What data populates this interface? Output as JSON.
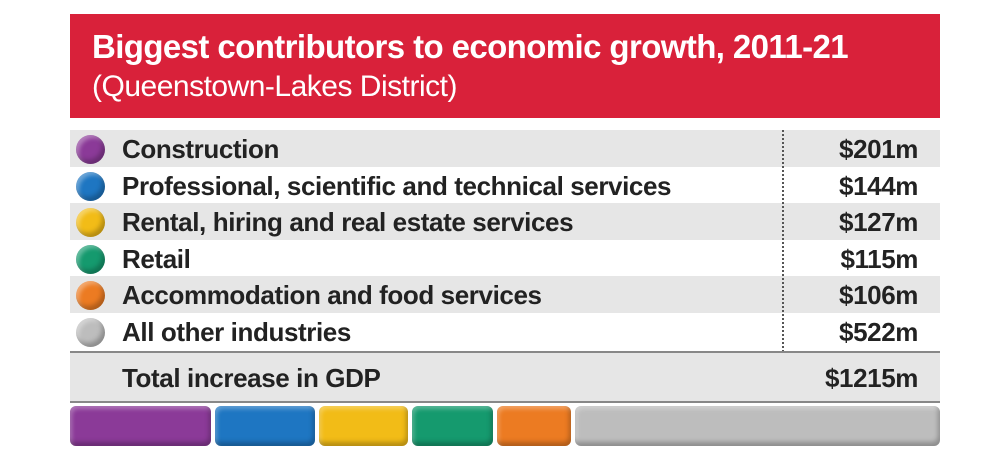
{
  "title": "Biggest contributors to economic growth, 2011-21",
  "subtitle": "(Queenstown-Lakes District)",
  "chart_data": {
    "type": "table",
    "title": "Biggest contributors to economic growth, 2011-21",
    "subtitle": "(Queenstown-Lakes District)",
    "rows": [
      {
        "label": "Construction",
        "value_text": "$201m",
        "value": 201,
        "color": "#8b3a98"
      },
      {
        "label": "Professional, scientific and technical services",
        "value_text": "$144m",
        "value": 144,
        "color": "#1e76c2"
      },
      {
        "label": "Rental, hiring and real estate services",
        "value_text": "$127m",
        "value": 127,
        "color": "#f2bc17"
      },
      {
        "label": "Retail",
        "value_text": "$115m",
        "value": 115,
        "color": "#159a6e"
      },
      {
        "label": "Accommodation and food services",
        "value_text": "$106m",
        "value": 106,
        "color": "#ec7b22"
      },
      {
        "label": "All other industries",
        "value_text": "$522m",
        "value": 522,
        "color": "#bdbdbd"
      }
    ],
    "total": {
      "label": "Total increase in GDP",
      "value_text": "$1215m",
      "value": 1215
    }
  }
}
